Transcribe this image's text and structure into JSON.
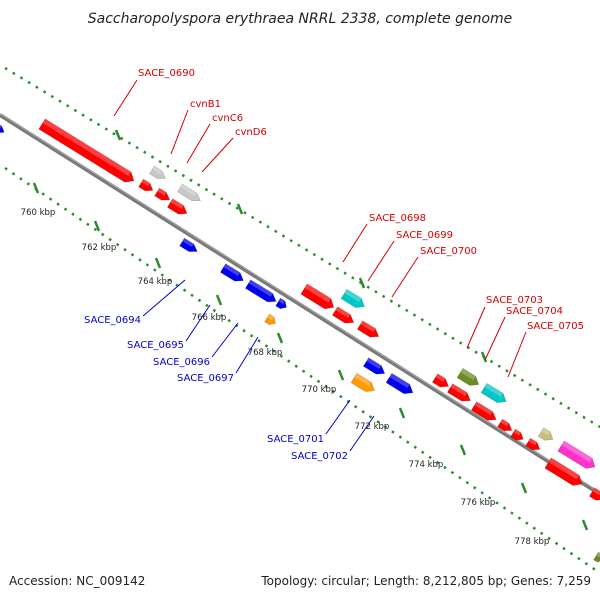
{
  "title": "Saccharopolyspora erythraea NRRL 2338, complete genome",
  "footer": {
    "accession": "Accession: NC_009142",
    "summary": "Topology: circular; Length: 8,212,805 bp; Genes: 7,259"
  },
  "colors": {
    "backbone": "#7a7a7a",
    "tick_dots": "#2e8b2e",
    "label_forward": "#d40000",
    "label_reverse": "#0000cc",
    "gene_red": "#ff0000",
    "gene_blue": "#0000ee",
    "gene_grey": "#c8c8c8",
    "gene_cyan": "#00c8c8",
    "gene_orange": "#ff9a00",
    "gene_olive": "#6b8e23",
    "gene_khaki": "#c8be82",
    "gene_magenta": "#ff33cc"
  },
  "ticks": [
    "760 kbp",
    "762 kbp",
    "764 kbp",
    "766 kbp",
    "768 kbp",
    "770 kbp",
    "772 kbp",
    "774 kbp",
    "776 kbp",
    "778 kbp"
  ],
  "forward_labels": [
    "SACE_0690",
    "cvnB1",
    "cvnC6",
    "cvnD6",
    "SACE_0698",
    "SACE_0699",
    "SACE_0700",
    "SACE_0703",
    "SACE_0704",
    "SACE_0705"
  ],
  "reverse_labels": [
    "SACE_0694",
    "SACE_0695",
    "SACE_0696",
    "SACE_0697",
    "SACE_0701",
    "SACE_0702"
  ]
}
